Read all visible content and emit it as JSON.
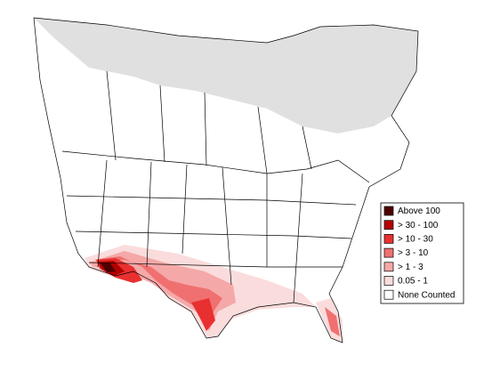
{
  "legend": {
    "items": [
      {
        "label": "Above 100",
        "color": "#4d0000"
      },
      {
        "label": "> 30 - 100",
        "color": "#b30000"
      },
      {
        "label": "> 10 - 30",
        "color": "#e83030"
      },
      {
        "label": "> 3 - 10",
        "color": "#f07070"
      },
      {
        "label": "> 1 - 3",
        "color": "#f5a8a8"
      },
      {
        "label": "0.05 - 1",
        "color": "#fadcdc"
      },
      {
        "label": "None Counted",
        "color": "#ffffff"
      }
    ]
  }
}
